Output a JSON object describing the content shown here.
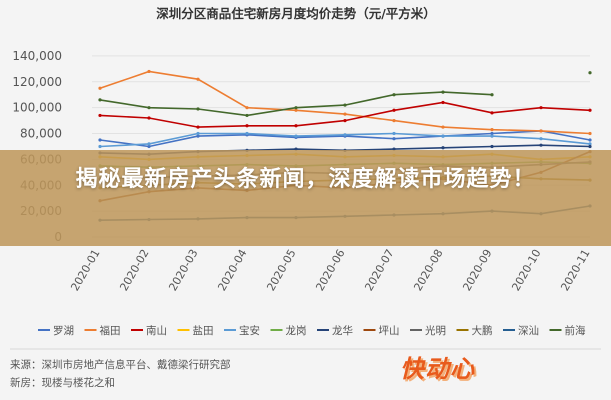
{
  "headline": "揭秘最新房产头条新闻，深度解读市场趋势！",
  "source": {
    "line1": "来源：深圳市房地产信息平台、戴德梁行研究部",
    "line2": "新房：现楼与楼花之和"
  },
  "logo": {
    "text": "快动心",
    "color": "#e85a1c"
  },
  "chart_data": {
    "type": "line",
    "title": "深圳分区商品住宅新房月度均价走势（元/平方米）",
    "xlabel": "",
    "ylabel": "",
    "ylim": [
      0,
      150000
    ],
    "yticks": [
      "0",
      "20,000",
      "40,000",
      "60,000",
      "80,000",
      "100,000",
      "120,000",
      "140,000"
    ],
    "ytick_values": [
      0,
      20000,
      40000,
      60000,
      80000,
      100000,
      120000,
      140000
    ],
    "x": [
      "2020-01",
      "2020-02",
      "2020-03",
      "2020-04",
      "2020-05",
      "2020-06",
      "2020-07",
      "2020-08",
      "2020-09",
      "2020-10",
      "2020-11"
    ],
    "grid": true,
    "legend_position": "bottom",
    "series": [
      {
        "name": "罗湖",
        "color": "#4472c4",
        "values": [
          75000,
          70000,
          78000,
          79000,
          77000,
          78000,
          76000,
          78000,
          80000,
          82000,
          75000
        ]
      },
      {
        "name": "福田",
        "color": "#ed7d31",
        "values": [
          115000,
          128000,
          122000,
          100000,
          98000,
          95000,
          90000,
          85000,
          83000,
          82000,
          80000
        ]
      },
      {
        "name": "南山",
        "color": "#c00000",
        "values": [
          94000,
          92000,
          85000,
          86000,
          86000,
          90000,
          98000,
          104000,
          96000,
          100000,
          98000
        ]
      },
      {
        "name": "盐田",
        "color": "#ffc000",
        "values": [
          62000,
          60000,
          62000,
          63000,
          64000,
          62000,
          63000,
          62000,
          64000,
          60000,
          62000
        ]
      },
      {
        "name": "宝安",
        "color": "#5b9bd5",
        "values": [
          70000,
          72000,
          80000,
          80000,
          78000,
          79000,
          80000,
          78000,
          78000,
          76000,
          72000
        ]
      },
      {
        "name": "龙岗",
        "color": "#70ad47",
        "values": [
          55000,
          54000,
          55000,
          56000,
          55000,
          56000,
          57000,
          56000,
          57000,
          58000,
          57000
        ]
      },
      {
        "name": "龙华",
        "color": "#264478",
        "values": [
          65000,
          64000,
          66000,
          67000,
          68000,
          67000,
          68000,
          69000,
          70000,
          71000,
          70000
        ]
      },
      {
        "name": "坪山",
        "color": "#9e480e",
        "values": [
          28000,
          35000,
          38000,
          36000,
          40000,
          38000,
          42000,
          45000,
          40000,
          50000,
          66000
        ]
      },
      {
        "name": "光明",
        "color": "#636363",
        "values": [
          45000,
          46000,
          47000,
          48000,
          50000,
          49000,
          52000,
          55000,
          54000,
          56000,
          58000
        ]
      },
      {
        "name": "大鹏",
        "color": "#997300",
        "values": [
          38000,
          40000,
          42000,
          41000,
          43000,
          44000,
          45000,
          46000,
          47000,
          45000,
          44000
        ]
      },
      {
        "name": "深汕",
        "color": "#255e91",
        "values": [
          13000,
          13500,
          14000,
          15000,
          15000,
          16000,
          17000,
          18000,
          20000,
          18000,
          24000
        ]
      },
      {
        "name": "前海",
        "color": "#43682b",
        "values": [
          106000,
          100000,
          99000,
          94000,
          100000,
          102000,
          110000,
          112000,
          110000,
          null,
          127000
        ]
      }
    ]
  }
}
